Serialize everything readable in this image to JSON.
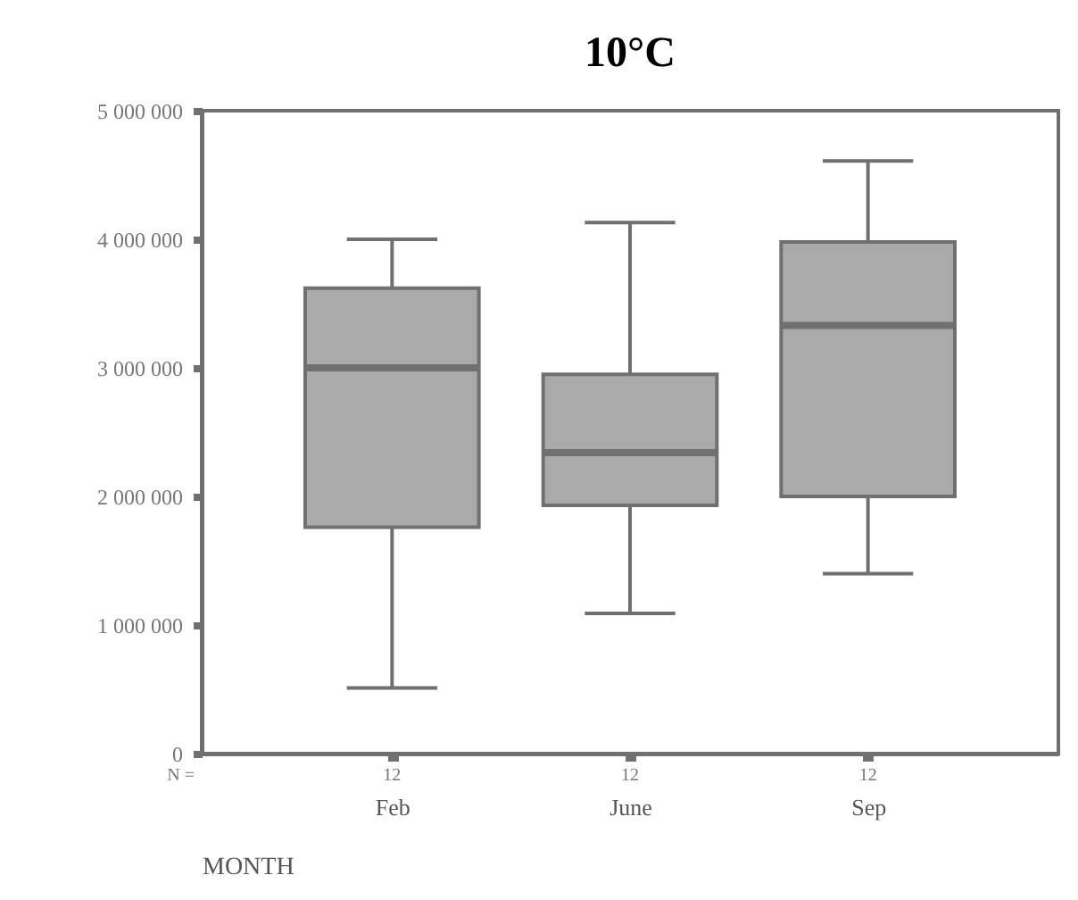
{
  "chart_data": {
    "type": "box",
    "title": "10°C",
    "xlabel": "MONTH",
    "categories": [
      "Feb",
      "June",
      "Sep"
    ],
    "boxes": [
      {
        "low": 510000,
        "q1": 1760000,
        "median": 3000000,
        "q3": 3620000,
        "high": 4000000
      },
      {
        "low": 1090000,
        "q1": 1930000,
        "median": 2340000,
        "q3": 2950000,
        "high": 4130000
      },
      {
        "low": 1400000,
        "q1": 2000000,
        "median": 3330000,
        "q3": 3980000,
        "high": 4610000
      }
    ],
    "color": "#aaaaaa",
    "ylim": [
      0,
      5000000
    ],
    "yticks": [
      {
        "value": 0,
        "label": "0"
      },
      {
        "value": 1000000,
        "label": "1 000 000"
      },
      {
        "value": 2000000,
        "label": "2 000 000"
      },
      {
        "value": 3000000,
        "label": "3 000 000"
      },
      {
        "value": 4000000,
        "label": "4 000 000"
      },
      {
        "value": 5000000,
        "label": "5 000 000"
      }
    ],
    "grid": false,
    "annotations": [
      "N =",
      "12",
      "12",
      "12"
    ]
  }
}
